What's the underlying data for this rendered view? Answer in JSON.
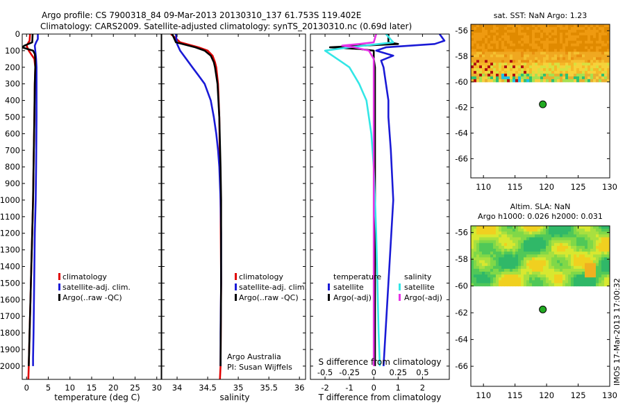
{
  "title_line1": "Argo profile: CS 7900318_84 09-Mar-2013 20130310_137 61.753S 119.402E",
  "title_line2": "Climatology: CARS2009. Satellite-adjusted climatology: synTS_20130310.nc (0.69d later)",
  "watermark": "IMOS 17-Mar-2013 17:00:32",
  "colors": {
    "climatology": "#e00000",
    "satellite": "#1a1ad6",
    "argo": "#000000",
    "sal_satellite": "#33e6e6",
    "sal_argo": "#e633e6",
    "ocean": "#ffffff"
  },
  "chart_data": [
    {
      "type": "line",
      "id": "temperature",
      "xlabel": "temperature (deg C)",
      "xlim": [
        -1,
        31
      ],
      "xticks": [
        0,
        5,
        10,
        15,
        20,
        25,
        30
      ],
      "ylim": [
        0,
        2080
      ],
      "yticks": [
        0,
        100,
        200,
        300,
        400,
        500,
        600,
        700,
        800,
        900,
        1000,
        1100,
        1200,
        1300,
        1400,
        1500,
        1600,
        1700,
        1800,
        1900,
        2000
      ],
      "legend": [
        "climatology",
        "satellite-adj. clim.",
        "Argo(..raw -QC)"
      ],
      "series": [
        {
          "name": "climatology",
          "color": "#e00000",
          "depth": [
            0,
            40,
            70,
            100,
            150,
            200,
            300,
            500,
            800,
            1000,
            1200,
            1400,
            1600,
            1800,
            2000,
            2080
          ],
          "values": [
            0.8,
            0.7,
            0.0,
            0.5,
            1.8,
            2.0,
            1.9,
            1.8,
            1.6,
            1.5,
            1.3,
            1.1,
            0.9,
            0.7,
            0.5,
            0.4
          ]
        },
        {
          "name": "satellite-adj. clim.",
          "color": "#1a1ad6",
          "depth": [
            0,
            30,
            50,
            70,
            100,
            150,
            200,
            300,
            500,
            800,
            1000,
            1200,
            1400,
            1600,
            1800,
            1950,
            2000
          ],
          "values": [
            2.6,
            2.6,
            2.2,
            1.9,
            2.0,
            2.2,
            2.3,
            2.3,
            2.3,
            2.2,
            2.1,
            1.9,
            1.8,
            1.7,
            1.6,
            1.5,
            1.5
          ]
        },
        {
          "name": "Argo(..raw -QC)",
          "color": "#000000",
          "depth": [
            0,
            50,
            70,
            80,
            90,
            100,
            120,
            150,
            200,
            300,
            500,
            800,
            1000,
            1200,
            1400,
            1600,
            1800,
            2000
          ],
          "values": [
            1.4,
            1.3,
            -0.5,
            -1.0,
            0.2,
            1.5,
            1.9,
            2.0,
            2.0,
            1.9,
            1.8,
            1.6,
            1.5,
            1.3,
            1.1,
            0.9,
            0.7,
            0.5
          ]
        }
      ]
    },
    {
      "type": "line",
      "id": "salinity",
      "xlabel": "salinity",
      "xlim": [
        33.75,
        36.1
      ],
      "xticks": [
        34,
        34.5,
        35,
        35.5,
        36
      ],
      "ylim": [
        0,
        2080
      ],
      "legend": [
        "climatology",
        "satellite-adj. clim.",
        "Argo(..raw -QC)"
      ],
      "annotation": [
        "Argo Australia",
        "PI: Susan Wijffels"
      ],
      "series": [
        {
          "name": "climatology",
          "color": "#e00000",
          "depth": [
            0,
            50,
            80,
            100,
            130,
            170,
            200,
            300,
            500,
            800,
            1000,
            1500,
            2000,
            2080
          ],
          "values": [
            33.9,
            34.05,
            34.35,
            34.5,
            34.58,
            34.62,
            34.64,
            34.67,
            34.69,
            34.7,
            34.71,
            34.72,
            34.71,
            34.7
          ]
        },
        {
          "name": "satellite-adj. clim.",
          "color": "#1a1ad6",
          "depth": [
            0,
            30,
            60,
            100,
            150,
            200,
            250,
            300,
            400,
            500,
            600,
            700,
            800,
            1000,
            1200,
            1500,
            1800,
            2000
          ],
          "values": [
            33.98,
            33.99,
            34.0,
            34.05,
            34.15,
            34.25,
            34.35,
            34.45,
            34.55,
            34.6,
            34.64,
            34.67,
            34.69,
            34.71,
            34.72,
            34.72,
            34.71,
            34.71
          ]
        },
        {
          "name": "Argo(..raw -QC)",
          "color": "#000000",
          "depth": [
            0,
            50,
            80,
            100,
            130,
            170,
            200,
            300,
            500,
            800,
            1000,
            1500,
            2000
          ],
          "values": [
            33.92,
            33.98,
            34.3,
            34.45,
            34.55,
            34.6,
            34.62,
            34.66,
            34.69,
            34.71,
            34.72,
            34.72,
            34.71
          ]
        }
      ]
    },
    {
      "type": "line",
      "id": "difference",
      "xlabel": "T difference from climatology",
      "xlabel_top": "S difference from climatology",
      "xlim": [
        -2.6,
        3.1
      ],
      "xticks": [
        -2,
        -1,
        0,
        1,
        2
      ],
      "xticks_top_labels": [
        "-0.5",
        "-0.25",
        "0",
        "0.25",
        "0.5"
      ],
      "xticks_top_positions": [
        -2,
        -1,
        0,
        1,
        2
      ],
      "ylim": [
        0,
        2080
      ],
      "legend_temperature_title": "temperature",
      "legend_salinity_title": "salinity",
      "legend": [
        "satellite",
        "Argo(-adj)",
        "satellite",
        "Argo(-adj)"
      ],
      "series": [
        {
          "name": "T satellite",
          "color": "#1a1ad6",
          "depth": [
            0,
            40,
            60,
            80,
            100,
            130,
            160,
            200,
            300,
            400,
            500,
            700,
            1000,
            1500,
            2000
          ],
          "values": [
            2.7,
            2.9,
            2.5,
            0.5,
            0.1,
            0.8,
            0.3,
            0.4,
            0.5,
            0.6,
            0.6,
            0.7,
            0.8,
            0.6,
            0.4
          ]
        },
        {
          "name": "T Argo(-adj)",
          "color": "#000000",
          "depth": [
            0,
            50,
            60,
            70,
            80,
            90,
            100,
            150,
            200,
            500,
            1000,
            2000
          ],
          "values": [
            0.6,
            0.6,
            1.0,
            -0.5,
            -1.8,
            -0.6,
            0.0,
            0.0,
            0.05,
            0.05,
            0.05,
            0.05
          ]
        },
        {
          "name": "S satellite",
          "color": "#33e6e6",
          "depth": [
            0,
            50,
            80,
            100,
            130,
            170,
            200,
            300,
            400,
            600,
            800,
            1000,
            1200,
            1500,
            1800,
            2000
          ],
          "values": [
            0.5,
            0.8,
            -1.0,
            -2.0,
            -1.7,
            -1.3,
            -1.0,
            -0.6,
            -0.3,
            -0.1,
            0.0,
            0.05,
            0.1,
            0.15,
            0.2,
            0.25
          ]
        },
        {
          "name": "S Argo(-adj)",
          "color": "#e633e6",
          "depth": [
            0,
            50,
            60,
            70,
            80,
            100,
            150,
            200,
            500,
            1000,
            2000
          ],
          "values": [
            0.1,
            0.0,
            -0.6,
            -1.3,
            -0.8,
            -0.2,
            0.0,
            0.0,
            0.0,
            0.0,
            0.0
          ]
        }
      ]
    },
    {
      "type": "heatmap",
      "id": "sst-map",
      "title": "sat. SST: NaN Argo: 1.23",
      "xlim": [
        108,
        130
      ],
      "ylim": [
        -67.5,
        -55.5
      ],
      "xticks": [
        110,
        115,
        120,
        125,
        130
      ],
      "yticks": [
        -56,
        -58,
        -60,
        -62,
        -64,
        -66
      ],
      "data_lat_range": [
        -60,
        -56
      ],
      "argo_position": {
        "lon": 119.402,
        "lat": -61.753
      }
    },
    {
      "type": "heatmap",
      "id": "sla-map",
      "title": "Altim. SLA: NaN",
      "subtitle": "Argo h1000: 0.026 h2000: 0.031",
      "xlim": [
        108,
        130
      ],
      "ylim": [
        -67.5,
        -55.5
      ],
      "xticks": [
        110,
        115,
        120,
        125,
        130
      ],
      "yticks": [
        -56,
        -58,
        -60,
        -62,
        -64,
        -66
      ],
      "data_lat_range": [
        -60,
        -56
      ],
      "argo_position": {
        "lon": 119.402,
        "lat": -61.753
      }
    }
  ]
}
